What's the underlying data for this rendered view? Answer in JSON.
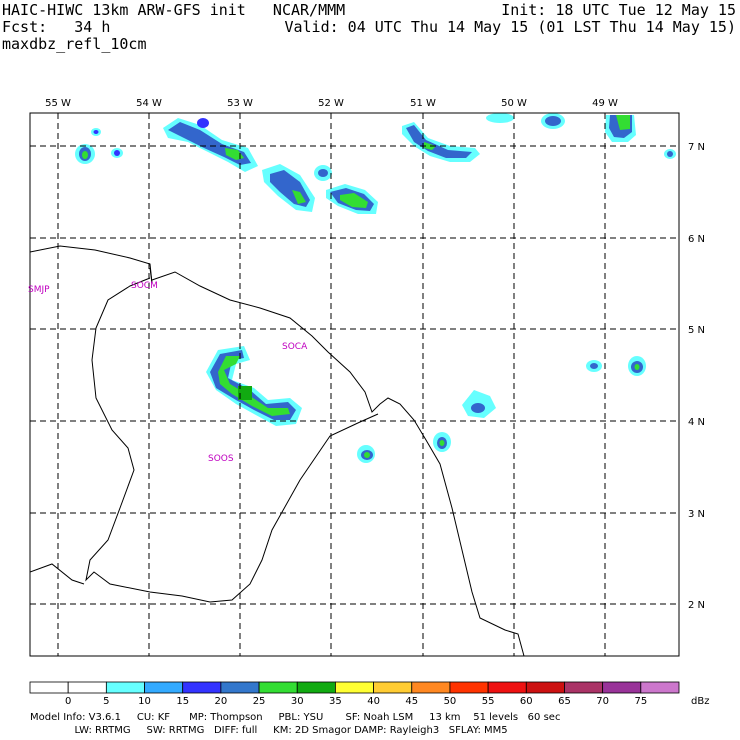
{
  "header": {
    "left_line1": "HAIC-HIWC 13km ARW-GFS init   NCAR/MMM",
    "left_line2": "Fcst:   34 h",
    "left_line3": "maxdbz_refl_10cm",
    "right_line1": "Init: 18 UTC Tue 12 May 15",
    "right_line2": "Valid: 04 UTC Thu 14 May 15 (01 LST Thu 14 May 15)"
  },
  "map": {
    "lon_labels": [
      "55 W",
      "54 W",
      "53 W",
      "52 W",
      "51 W",
      "50 W",
      "49 W"
    ],
    "lat_labels": [
      "7 N",
      "6 N",
      "5 N",
      "4 N",
      "3 N",
      "2 N"
    ],
    "stations": [
      "SMJP",
      "SOCM",
      "SOCA",
      "SOOS"
    ]
  },
  "colorbar": {
    "unit": "dBz",
    "levels": [
      "0",
      "5",
      "10",
      "15",
      "20",
      "25",
      "30",
      "35",
      "40",
      "45",
      "50",
      "55",
      "60",
      "65",
      "70",
      "75"
    ],
    "colors": [
      "#ffffff",
      "#ffffff",
      "#66ffff",
      "#33aaff",
      "#3333ff",
      "#3377cc",
      "#33dd33",
      "#11aa11",
      "#ffff33",
      "#ffcc33",
      "#ff8822",
      "#ff3300",
      "#ee1111",
      "#cc1111",
      "#aa3366",
      "#993399",
      "#cc77cc"
    ]
  },
  "footer": {
    "line1": "Model Info: V3.6.1     CU: KF      MP: Thompson     PBL: YSU       SF: Noah LSM     13 km    51 levels   60 sec",
    "line2": "              LW: RRTMG     SW: RRTMG   DIFF: full     KM: 2D Smagor DAMP: Rayleigh3   SFLAY: MM5"
  }
}
